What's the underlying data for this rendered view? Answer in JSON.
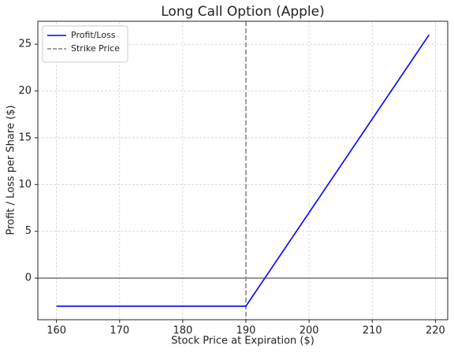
{
  "chart_data": {
    "type": "line",
    "title": "Long Call Option (Apple)",
    "x_label": "Stock Price at Expiration ($)",
    "y_label": "Profit / Loss per Share ($)",
    "x": [
      160,
      190,
      219
    ],
    "series": [
      {
        "name": "Profit/Loss",
        "color": "#0000ff",
        "values": [
          -3,
          -3,
          26
        ]
      }
    ],
    "vlines": [
      {
        "name": "Strike Price",
        "x": 190,
        "color": "#808080",
        "style": "dashed"
      }
    ],
    "xlim": [
      157.05,
      221.95
    ],
    "xticks": [
      160,
      170,
      180,
      190,
      200,
      210,
      220
    ],
    "ylim": [
      -4.45,
      27.45
    ],
    "yticks": [
      0,
      5,
      10,
      15,
      20,
      25
    ],
    "grid": true,
    "legend": "upper left"
  }
}
